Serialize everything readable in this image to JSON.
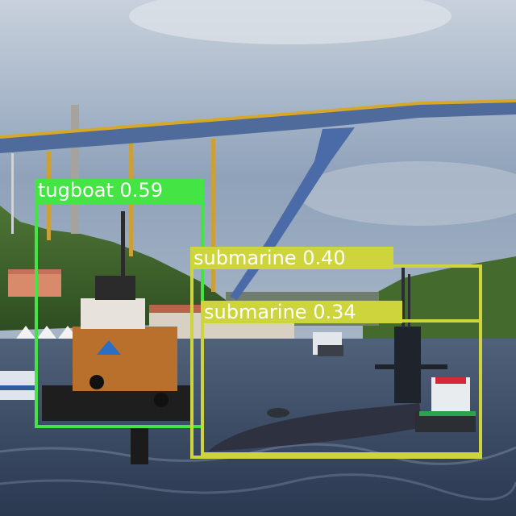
{
  "detections": [
    {
      "label": "tugboat",
      "score": "0.59",
      "color": "#44e444"
    },
    {
      "label": "submarine",
      "score": "0.40",
      "color": "#cdd43c"
    },
    {
      "label": "submarine",
      "score": "0.34",
      "color": "#cdd43c"
    }
  ]
}
